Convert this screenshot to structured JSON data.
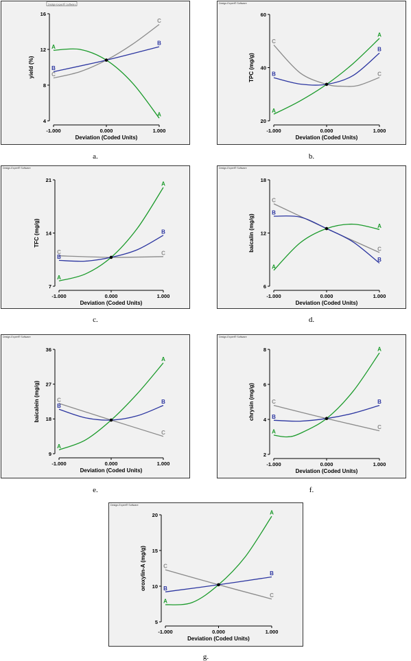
{
  "colors": {
    "A": "#1a9a2a",
    "B": "#2b35a0",
    "C": "#8a8a8a",
    "frame_bg": "#f1f1f1"
  },
  "chart_data": [
    {
      "type": "line",
      "panel": "a",
      "caption": "a.",
      "watermark": "Design-Expert® Software",
      "watermark_boxed": true,
      "xlabel": "Deviation (Coded Units)",
      "ylabel": "yield (%)",
      "xlim": [
        -1,
        1
      ],
      "ylim": [
        4,
        16
      ],
      "yticks": [
        4,
        8,
        12,
        16
      ],
      "xticks": [
        "-1.000",
        "0.000",
        "1.000"
      ],
      "center": {
        "x": 0,
        "y": 10.8
      },
      "series": [
        {
          "name": "A",
          "points": [
            [
              -1,
              11.9
            ],
            [
              -0.5,
              12.0
            ],
            [
              0,
              10.8
            ],
            [
              0.5,
              8.2
            ],
            [
              1,
              4.3
            ]
          ]
        },
        {
          "name": "B",
          "points": [
            [
              -1,
              9.5
            ],
            [
              0,
              10.8
            ],
            [
              1,
              12.3
            ]
          ]
        },
        {
          "name": "C",
          "points": [
            [
              -1,
              8.8
            ],
            [
              -0.5,
              9.5
            ],
            [
              0,
              10.8
            ],
            [
              0.5,
              12.6
            ],
            [
              1,
              14.8
            ]
          ]
        }
      ]
    },
    {
      "type": "line",
      "panel": "b",
      "caption": "b.",
      "watermark": "Design-Expert® Software",
      "watermark_boxed": false,
      "xlabel": "Deviation (Coded Units)",
      "ylabel": "TPC (mg/g)",
      "xlim": [
        -1,
        1
      ],
      "ylim": [
        20,
        60
      ],
      "yticks": [
        20,
        40,
        60
      ],
      "xticks": [
        "-1.000",
        "0.000",
        "1.000"
      ],
      "center": {
        "x": 0,
        "y": 33.7
      },
      "series": [
        {
          "name": "A",
          "points": [
            [
              -1,
              22.5
            ],
            [
              -0.5,
              27.5
            ],
            [
              0,
              33.7
            ],
            [
              0.5,
              41.5
            ],
            [
              1,
              51.0
            ]
          ]
        },
        {
          "name": "B",
          "points": [
            [
              -1,
              36.2
            ],
            [
              -0.5,
              33.8
            ],
            [
              0,
              33.7
            ],
            [
              0.5,
              37.0
            ],
            [
              1,
              45.5
            ]
          ]
        },
        {
          "name": "C",
          "points": [
            [
              -1,
              48.5
            ],
            [
              -0.5,
              38.0
            ],
            [
              0,
              33.7
            ],
            [
              0.3,
              33.0
            ],
            [
              0.6,
              33.3
            ],
            [
              1,
              36.3
            ]
          ]
        }
      ]
    },
    {
      "type": "line",
      "panel": "c",
      "caption": "c.",
      "watermark": "Design-Expert® Software",
      "watermark_boxed": false,
      "xlabel": "Deviation (Coded Units)",
      "ylabel": "TFC (mg/g)",
      "xlim": [
        -1,
        1
      ],
      "ylim": [
        7,
        21
      ],
      "yticks": [
        7,
        14,
        21
      ],
      "xticks": [
        "-1.000",
        "0.000",
        "1.000"
      ],
      "center": {
        "x": 0,
        "y": 10.8
      },
      "series": [
        {
          "name": "A",
          "points": [
            [
              -1,
              7.7
            ],
            [
              -0.5,
              8.6
            ],
            [
              0,
              10.8
            ],
            [
              0.5,
              14.6
            ],
            [
              1,
              20.0
            ]
          ]
        },
        {
          "name": "B",
          "points": [
            [
              -1,
              10.4
            ],
            [
              -0.5,
              10.3
            ],
            [
              0,
              10.8
            ],
            [
              0.5,
              11.8
            ],
            [
              1,
              13.7
            ]
          ]
        },
        {
          "name": "C",
          "points": [
            [
              -1,
              11.0
            ],
            [
              0,
              10.8
            ],
            [
              1,
              10.9
            ]
          ]
        }
      ]
    },
    {
      "type": "line",
      "panel": "d",
      "caption": "d.",
      "watermark": "Design-Expert® Software",
      "watermark_boxed": false,
      "xlabel": "Deviation (Coded Units)",
      "ylabel": "baicalin (mg/g)",
      "xlim": [
        -1,
        1
      ],
      "ylim": [
        6,
        18
      ],
      "yticks": [
        6,
        12,
        18
      ],
      "xticks": [
        "-1.000",
        "0.000",
        "1.000"
      ],
      "center": {
        "x": 0,
        "y": 12.5
      },
      "series": [
        {
          "name": "A",
          "points": [
            [
              -1,
              7.8
            ],
            [
              -0.5,
              10.9
            ],
            [
              0,
              12.5
            ],
            [
              0.5,
              13.0
            ],
            [
              1,
              12.4
            ]
          ]
        },
        {
          "name": "B",
          "points": [
            [
              -1,
              13.9
            ],
            [
              -0.5,
              13.8
            ],
            [
              0,
              12.5
            ],
            [
              0.5,
              11.0
            ],
            [
              1,
              8.6
            ]
          ]
        },
        {
          "name": "C",
          "points": [
            [
              -1,
              15.3
            ],
            [
              0,
              12.5
            ],
            [
              1,
              9.8
            ]
          ]
        }
      ]
    },
    {
      "type": "line",
      "panel": "e",
      "caption": "e.",
      "watermark": "Design-Expert® Software",
      "watermark_boxed": false,
      "xlabel": "Deviation (Coded Units)",
      "ylabel": "baicalein (mg/g)",
      "xlim": [
        -1,
        1
      ],
      "ylim": [
        9,
        36
      ],
      "yticks": [
        9,
        18,
        27,
        36
      ],
      "xticks": [
        "-1.000",
        "0.000",
        "1.000"
      ],
      "center": {
        "x": 0,
        "y": 17.7
      },
      "series": [
        {
          "name": "A",
          "points": [
            [
              -1,
              10.0
            ],
            [
              -0.5,
              12.5
            ],
            [
              0,
              17.7
            ],
            [
              0.5,
              24.5
            ],
            [
              1,
              32.5
            ]
          ]
        },
        {
          "name": "B",
          "points": [
            [
              -1,
              20.5
            ],
            [
              -0.5,
              18.3
            ],
            [
              0,
              17.7
            ],
            [
              0.5,
              18.8
            ],
            [
              1,
              21.5
            ]
          ]
        },
        {
          "name": "C",
          "points": [
            [
              -1,
              22.0
            ],
            [
              0,
              17.7
            ],
            [
              1,
              13.5
            ]
          ]
        }
      ]
    },
    {
      "type": "line",
      "panel": "f",
      "caption": "f.",
      "watermark": "Design-Expert® Software",
      "watermark_boxed": false,
      "xlabel": "Deviation (Coded Units)",
      "ylabel": "chrysin (mg/g)",
      "xlim": [
        -1,
        1
      ],
      "ylim": [
        2,
        8
      ],
      "yticks": [
        2,
        4,
        6,
        8
      ],
      "xticks": [
        "-1.000",
        "0.000",
        "1.000"
      ],
      "center": {
        "x": 0,
        "y": 4.05
      },
      "series": [
        {
          "name": "A",
          "points": [
            [
              -1,
              3.1
            ],
            [
              -0.75,
              3.0
            ],
            [
              -0.5,
              3.2
            ],
            [
              0,
              4.05
            ],
            [
              0.5,
              5.6
            ],
            [
              1,
              7.8
            ]
          ]
        },
        {
          "name": "B",
          "points": [
            [
              -1,
              3.95
            ],
            [
              -0.5,
              3.9
            ],
            [
              0,
              4.05
            ],
            [
              0.5,
              4.35
            ],
            [
              1,
              4.8
            ]
          ]
        },
        {
          "name": "C",
          "points": [
            [
              -1,
              4.8
            ],
            [
              0,
              4.05
            ],
            [
              1,
              3.35
            ]
          ]
        }
      ]
    },
    {
      "type": "line",
      "panel": "g",
      "caption": "g.",
      "watermark": "Design-Expert® Software",
      "watermark_boxed": false,
      "xlabel": "Deviation (Coded Units)",
      "ylabel": "oroxylin-A (mg/g)",
      "xlim": [
        -1,
        1
      ],
      "ylim": [
        5,
        20
      ],
      "yticks": [
        5,
        10,
        15,
        20
      ],
      "xticks": [
        "-1.000",
        "0.000",
        "1.000"
      ],
      "center": {
        "x": 0,
        "y": 10.2
      },
      "series": [
        {
          "name": "A",
          "points": [
            [
              -1,
              7.4
            ],
            [
              -0.5,
              7.7
            ],
            [
              0,
              10.2
            ],
            [
              0.5,
              14.1
            ],
            [
              1,
              19.8
            ]
          ]
        },
        {
          "name": "B",
          "points": [
            [
              -1,
              9.2
            ],
            [
              0,
              10.2
            ],
            [
              1,
              11.3
            ]
          ]
        },
        {
          "name": "C",
          "points": [
            [
              -1,
              12.3
            ],
            [
              0,
              10.2
            ],
            [
              1,
              8.2
            ]
          ]
        }
      ]
    }
  ]
}
